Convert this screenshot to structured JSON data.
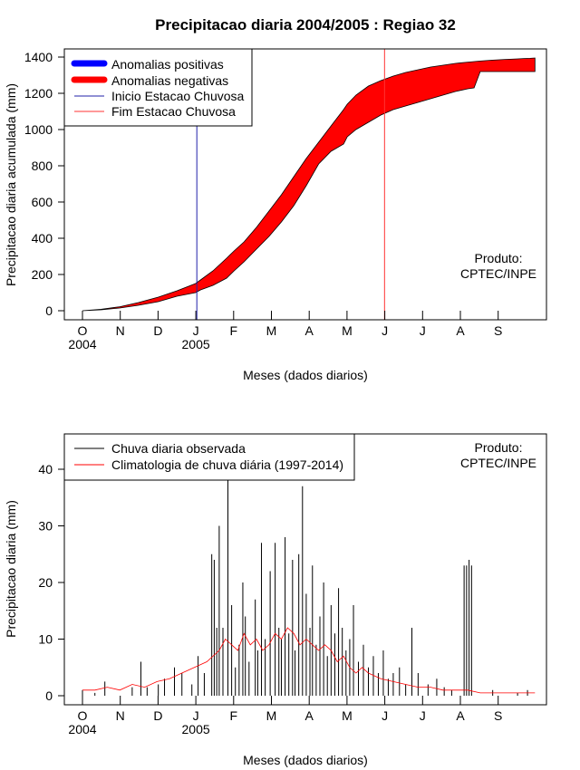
{
  "chart_data": [
    {
      "type": "area",
      "title": "Precipitacao diaria 2004/2005 : Regiao 32",
      "xlabel": "Meses (dados diarios)",
      "ylabel": "Precipitacao diaria acumulada (mm)",
      "ylim": [
        0,
        1400
      ],
      "yticks": [
        "0",
        "200",
        "400",
        "600",
        "800",
        "1000",
        "1200",
        "1400"
      ],
      "month_labels": [
        "O",
        "N",
        "D",
        "J",
        "F",
        "M",
        "A",
        "M",
        "J",
        "J",
        "A",
        "S"
      ],
      "year_labels": [
        "2004",
        "2005"
      ],
      "legend": [
        "Anomalias positivas",
        "Anomalias negativas",
        "Inicio Estacao Chuvosa",
        "Fim Estacao Chuvosa"
      ],
      "colors": {
        "positive": "#0000ff",
        "negative": "#ff0000",
        "onset": "#0000aa",
        "end": "#ff0000"
      },
      "onset_day": 92,
      "end_day": 243,
      "product_line1": "Produto:",
      "product_line2": "CPTEC/INPE",
      "days": [
        0,
        15,
        30,
        45,
        61,
        76,
        91,
        95,
        105,
        116,
        122,
        130,
        140,
        150,
        160,
        170,
        180,
        190,
        200,
        210,
        213,
        220,
        230,
        240,
        250,
        260,
        270,
        280,
        290,
        300,
        310,
        315,
        320,
        330,
        340,
        350,
        355,
        360,
        364
      ],
      "climatology_accum": [
        0,
        8,
        22,
        45,
        75,
        110,
        150,
        170,
        220,
        290,
        330,
        380,
        460,
        550,
        640,
        740,
        840,
        930,
        1020,
        1110,
        1140,
        1190,
        1240,
        1270,
        1295,
        1315,
        1330,
        1345,
        1355,
        1365,
        1372,
        1375,
        1378,
        1383,
        1387,
        1390,
        1392,
        1393,
        1395
      ],
      "observed_accum": [
        0,
        5,
        15,
        30,
        50,
        80,
        100,
        115,
        140,
        180,
        220,
        270,
        340,
        410,
        490,
        580,
        690,
        810,
        880,
        920,
        960,
        1000,
        1040,
        1080,
        1110,
        1130,
        1150,
        1170,
        1190,
        1210,
        1225,
        1230,
        1320,
        1320,
        1320,
        1320,
        1320,
        1320,
        1320
      ]
    },
    {
      "type": "bar",
      "xlabel": "Meses (dados diarios)",
      "ylabel": "Precipitacao diaria (mm)",
      "ylim": [
        0,
        45
      ],
      "yticks": [
        "0",
        "10",
        "20",
        "30",
        "40"
      ],
      "month_labels": [
        "O",
        "N",
        "D",
        "J",
        "F",
        "M",
        "A",
        "M",
        "J",
        "J",
        "A",
        "S"
      ],
      "year_labels": [
        "2004",
        "2005"
      ],
      "legend": [
        "Chuva diaria observada",
        "Climatologia de chuva diária (1997-2014)"
      ],
      "colors": {
        "observed": "#000000",
        "climatology": "#ff0000"
      },
      "product_line1": "Produto:",
      "product_line2": "CPTEC/INPE",
      "observed_days": [
        0,
        10,
        18,
        40,
        47,
        52,
        61,
        66,
        74,
        80,
        88,
        93,
        98,
        104,
        106,
        108,
        110,
        113,
        117,
        120,
        123,
        126,
        129,
        131,
        134,
        139,
        141,
        144,
        147,
        151,
        155,
        158,
        160,
        163,
        166,
        169,
        171,
        174,
        177,
        180,
        183,
        185,
        188,
        191,
        194,
        197,
        200,
        203,
        206,
        209,
        212,
        215,
        218,
        222,
        226,
        230,
        234,
        238,
        242,
        246,
        250,
        255,
        260,
        265,
        270,
        278,
        285,
        291,
        297,
        307,
        309,
        311,
        313,
        330,
        350,
        358
      ],
      "observed": [
        1,
        0.5,
        2.5,
        1.5,
        6,
        1.5,
        2,
        3,
        5,
        4,
        2,
        7,
        4,
        25,
        24,
        12,
        30,
        12,
        39,
        16,
        5,
        9,
        20,
        14,
        6,
        17,
        8,
        27,
        10,
        22,
        27,
        12,
        10,
        28,
        11,
        24,
        8,
        25,
        37,
        18,
        12,
        23,
        9,
        14,
        20,
        7,
        16,
        11,
        19,
        12,
        8,
        10,
        16,
        6,
        9,
        5,
        7,
        4,
        8,
        3,
        4,
        5,
        2,
        12,
        4,
        2,
        3,
        1.5,
        1,
        23,
        23,
        24,
        23,
        1,
        0.5,
        1
      ],
      "climatology_days": [
        0,
        10,
        20,
        30,
        40,
        50,
        60,
        70,
        80,
        90,
        100,
        110,
        115,
        120,
        125,
        130,
        135,
        140,
        145,
        150,
        155,
        160,
        165,
        170,
        175,
        180,
        185,
        190,
        195,
        200,
        205,
        210,
        215,
        220,
        225,
        230,
        240,
        250,
        260,
        270,
        280,
        290,
        300,
        310,
        320,
        330,
        340,
        350,
        364
      ],
      "climatology": [
        1,
        1,
        1.5,
        1,
        2,
        1.5,
        2.5,
        3,
        4,
        5,
        6,
        8,
        10,
        9,
        8,
        11,
        9,
        10,
        8,
        9,
        11,
        10,
        12,
        11,
        9,
        10,
        9,
        8,
        9,
        8,
        6,
        7,
        5,
        4,
        5,
        4,
        3,
        2.5,
        2,
        1.5,
        1.5,
        1,
        1,
        1,
        0.5,
        0.5,
        0.5,
        0.5,
        0.5
      ]
    }
  ]
}
